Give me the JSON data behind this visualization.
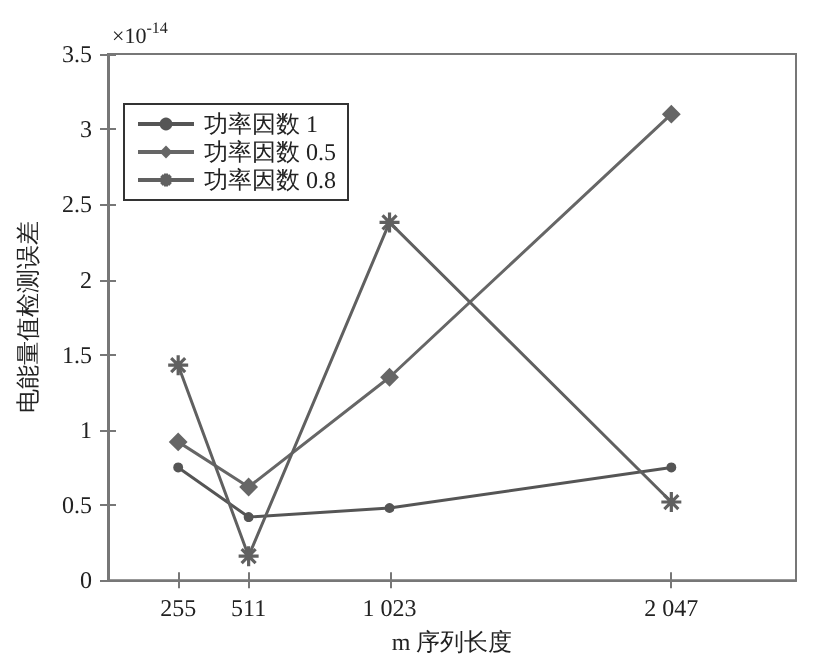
{
  "chart_data": {
    "type": "line",
    "xlabel": "m 序列长度",
    "ylabel": "电能量值检测误差",
    "annotations": [
      "×10$^{-14}$"
    ],
    "xlim": [
      0,
      2500
    ],
    "xticks": [
      255,
      511,
      {
        "value": 1023,
        "label": "1 023"
      },
      {
        "value": 2047,
        "label": "2 047"
      }
    ],
    "ylim": [
      0,
      3.5
    ],
    "yticks": [
      0,
      0.5,
      1,
      1.5,
      2,
      2.5,
      3,
      3.5
    ],
    "grid": false,
    "legend": "top left",
    "line_style": "solid",
    "x": [
      255,
      511,
      1023,
      2047
    ],
    "series": [
      {
        "name": "功率因数 1",
        "color": "#555555",
        "marker": "circle",
        "values": [
          0.75,
          0.42,
          0.48,
          0.75
        ]
      },
      {
        "name": "功率因数 0.5",
        "color": "#666666",
        "marker": "diamond",
        "values": [
          0.92,
          0.62,
          1.35,
          3.1
        ]
      },
      {
        "name": "功率因数 0.8",
        "color": "#606060",
        "marker": "cross",
        "values": [
          1.43,
          0.16,
          2.38,
          0.52
        ]
      }
    ]
  }
}
